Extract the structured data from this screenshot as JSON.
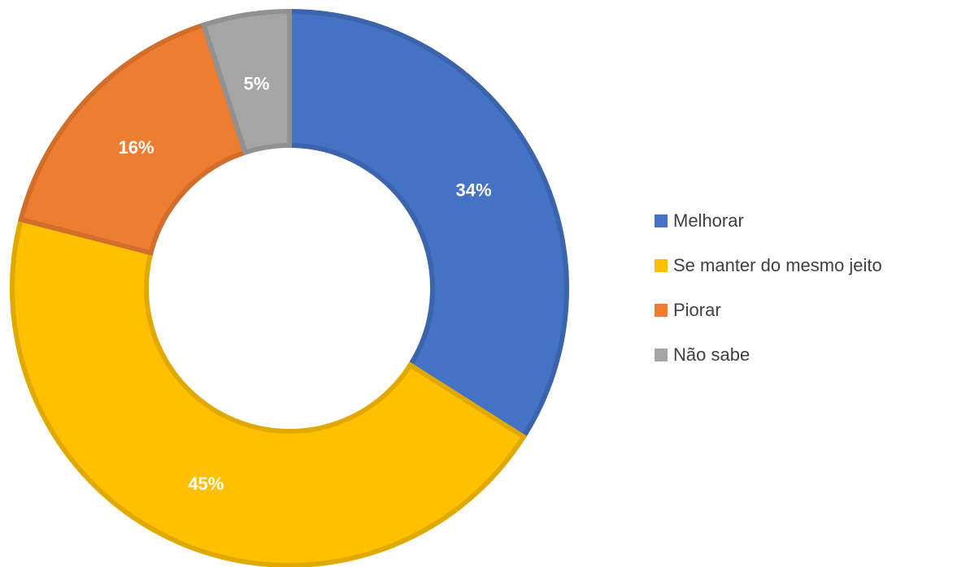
{
  "chart_data": {
    "type": "donut",
    "categories": [
      "Melhorar",
      "Se manter do mesmo jeito",
      "Piorar",
      "Não sabe"
    ],
    "values": [
      34,
      45,
      16,
      5
    ],
    "value_labels": [
      "34%",
      "45%",
      "16%",
      "5%"
    ],
    "colors": [
      "#4472c4",
      "#ffc000",
      "#ed7d31",
      "#a5a5a5"
    ],
    "legend": "right"
  }
}
